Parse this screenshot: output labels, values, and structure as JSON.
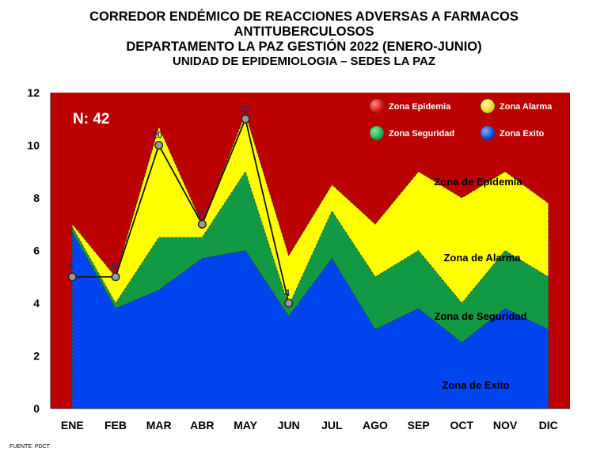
{
  "titles": {
    "line1": "CORREDOR ENDÉMICO DE REACCIONES ADVERSAS  A FARMACOS",
    "line2": "ANTITUBERCULOSOS",
    "line3": "DEPARTAMENTO  LA PAZ GESTIÓN 2022 (ENERO-JUNIO)",
    "line4": "UNIDAD DE EPIDEMIOLOGIA – SEDES LA PAZ"
  },
  "source": "FUENTE:  PDCT",
  "n_label": "N: 42",
  "chart_data": {
    "type": "area",
    "categories": [
      "ENE",
      "FEB",
      "MAR",
      "ABR",
      "MAY",
      "JUN",
      "JUL",
      "AGO",
      "SEP",
      "OCT",
      "NOV",
      "DIC"
    ],
    "ylim": [
      0,
      12
    ],
    "yticks": [
      0,
      2,
      4,
      6,
      8,
      10,
      12
    ],
    "grid": false,
    "legend_position": "top-right",
    "zones": {
      "exito": [
        6.7,
        3.8,
        4.5,
        5.7,
        6.0,
        3.5,
        5.7,
        3.0,
        3.8,
        2.5,
        3.8,
        3.0
      ],
      "seguridad": [
        6.9,
        4.0,
        6.5,
        6.5,
        9.0,
        3.9,
        7.5,
        5.0,
        6.0,
        4.0,
        6.0,
        5.0
      ],
      "alarma": [
        7.0,
        5.0,
        10.7,
        7.0,
        11.2,
        5.8,
        8.5,
        7.0,
        9.0,
        8.0,
        9.0,
        7.8
      ]
    },
    "colors": {
      "epidemia": "#bb0000",
      "alarma": "#ffff00",
      "seguridad": "#119944",
      "exito": "#0044ee"
    },
    "legend": [
      {
        "name": "Zona Epidemia",
        "color": "#dd1111"
      },
      {
        "name": "Zona Alarma",
        "color": "#ffee00"
      },
      {
        "name": "Zona Seguridad",
        "color": "#22aa44"
      },
      {
        "name": "Zona Exito",
        "color": "#1155ee"
      }
    ],
    "zone_labels": [
      "Zona de Epidemia",
      "Zona de Alarma",
      "Zona de Seguridad",
      "Zona de Exito"
    ],
    "cases": {
      "categories": [
        "ENE",
        "FEB",
        "MAR",
        "ABR",
        "MAY",
        "JUN"
      ],
      "values": [
        5,
        5,
        10,
        7,
        11,
        4
      ]
    }
  }
}
